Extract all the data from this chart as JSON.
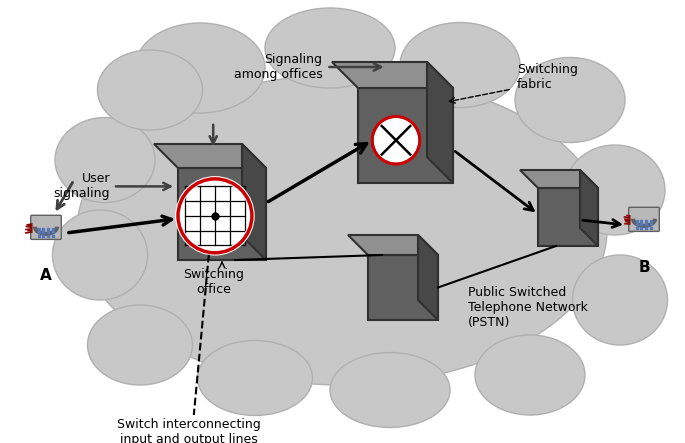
{
  "figsize": [
    6.85,
    4.43
  ],
  "dpi": 100,
  "bg_color": "#ffffff",
  "cloud_color": "#c8c8c8",
  "cloud_edge": "#b0b0b0",
  "box_front": "#606060",
  "box_top": "#909090",
  "box_right": "#484848",
  "box_edge": "#303030",
  "white": "#ffffff",
  "red": "#cc0000",
  "black": "#000000",
  "labels": {
    "A": "A",
    "B": "B",
    "user_signaling": "User\nsignaling",
    "signaling_offices": "Signaling\namong offices",
    "switching_fabric": "Switching\nfabric",
    "switching_office": "Switching\noffice",
    "pstn": "Public Switched\nTelephone Network\n(PSTN)",
    "switch_interconnect": "Switch interconnecting\ninput and output lines"
  }
}
